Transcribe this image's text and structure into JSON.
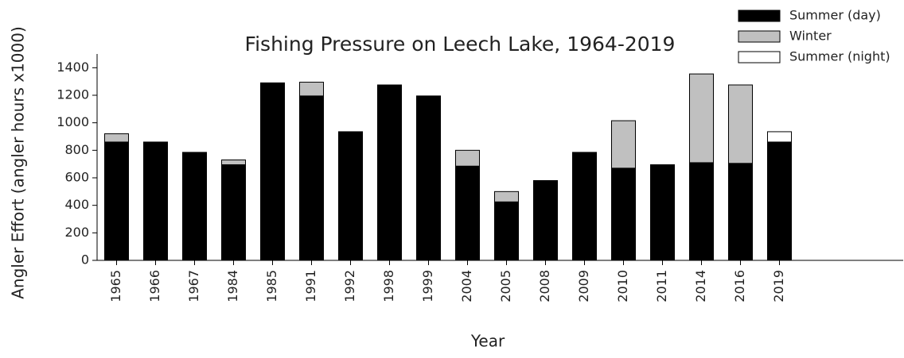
{
  "chart_data": {
    "type": "stacked-bar",
    "title": "Fishing Pressure on Leech Lake, 1964-2019",
    "x_label": "Year",
    "y_label": "Angler Effort (angler hours x1000)",
    "categories": [
      "1965",
      "1966",
      "1967",
      "1984",
      "1985",
      "1991",
      "1992",
      "1998",
      "1999",
      "2004",
      "2005",
      "2008",
      "2009",
      "2010",
      "2011",
      "2014",
      "2016",
      "2019"
    ],
    "series": [
      {
        "name": "Summer (day)",
        "color": "#000000",
        "values": [
          860,
          860,
          785,
          695,
          1290,
          1195,
          935,
          1275,
          1195,
          685,
          425,
          580,
          785,
          670,
          695,
          710,
          705,
          860
        ]
      },
      {
        "name": "Winter",
        "color": "#c0c0c0",
        "values": [
          60,
          0,
          0,
          35,
          0,
          100,
          0,
          0,
          0,
          115,
          75,
          0,
          0,
          345,
          0,
          645,
          570,
          0
        ]
      },
      {
        "name": "Summer (night)",
        "color": "#ffffff",
        "values": [
          0,
          0,
          0,
          0,
          0,
          0,
          0,
          0,
          0,
          0,
          0,
          0,
          0,
          0,
          0,
          0,
          0,
          75
        ]
      }
    ],
    "ylim": [
      0,
      1500
    ],
    "yticks": [
      0,
      200,
      400,
      600,
      800,
      1000,
      1200,
      1400
    ],
    "legend": "top-right"
  }
}
